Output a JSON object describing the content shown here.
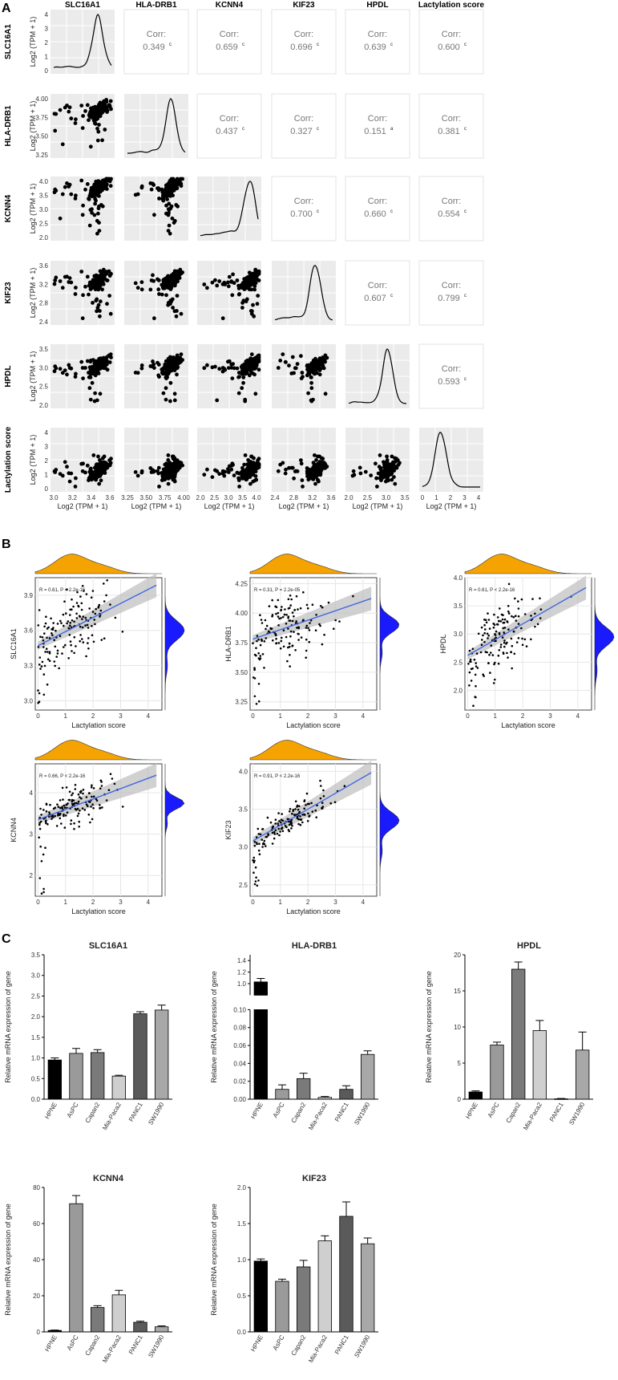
{
  "chart_data": [
    {
      "panel": "A",
      "type": "scatter",
      "kind": "correlation-matrix",
      "variables": [
        "SLC16A1",
        "HLA-DRB1",
        "KCNN4",
        "KIF23",
        "HPDL",
        "Lactylation score"
      ],
      "row_axis_label": "Log2 (TPM + 1)",
      "col_axis_label": "Log2 (TPM + 1)",
      "ranges": [
        [
          2.9,
          3.75
        ],
        [
          3.2,
          4.15
        ],
        [
          1.6,
          4.1
        ],
        [
          2.35,
          3.7
        ],
        [
          1.7,
          3.55
        ],
        [
          -0.1,
          4.3
        ]
      ],
      "ticks": [
        [
          "3.0",
          "3.2",
          "3.4",
          "3.6"
        ],
        [
          "3.25",
          "3.50",
          "3.75",
          "4.00"
        ],
        [
          "2.0",
          "2.5",
          "3.0",
          "3.5",
          "4.0"
        ],
        [
          "2.4",
          "2.8",
          "3.2",
          "3.6"
        ],
        [
          "2.0",
          "2.5",
          "3.0",
          "3.5"
        ],
        [
          "0",
          "1",
          "2",
          "3",
          "4"
        ]
      ],
      "row_ticks": [
        [
          "0",
          "1",
          "2",
          "3",
          "4"
        ],
        [
          "3.25",
          "3.50",
          "3.75",
          "4.00"
        ],
        [
          "2.0",
          "2.5",
          "3.0",
          "3.5",
          "4.0"
        ],
        [
          "2.4",
          "2.8",
          "3.2",
          "3.6"
        ],
        [
          "2.0",
          "2.5",
          "3.0",
          "3.5"
        ],
        [
          "0",
          "1",
          "2",
          "3",
          "4"
        ]
      ],
      "means": [
        3.55,
        3.92,
        3.7,
        3.3,
        2.95,
        1.3
      ],
      "corr_label": "Corr:",
      "correlations": [
        {
          "row": 0,
          "col": 1,
          "value": "0.349",
          "sig": "c"
        },
        {
          "row": 0,
          "col": 2,
          "value": "0.659",
          "sig": "c"
        },
        {
          "row": 0,
          "col": 3,
          "value": "0.696",
          "sig": "c"
        },
        {
          "row": 0,
          "col": 4,
          "value": "0.639",
          "sig": "c"
        },
        {
          "row": 0,
          "col": 5,
          "value": "0.600",
          "sig": "c"
        },
        {
          "row": 1,
          "col": 2,
          "value": "0.437",
          "sig": "c"
        },
        {
          "row": 1,
          "col": 3,
          "value": "0.327",
          "sig": "c"
        },
        {
          "row": 1,
          "col": 4,
          "value": "0.151",
          "sig": "a"
        },
        {
          "row": 1,
          "col": 5,
          "value": "0.381",
          "sig": "c"
        },
        {
          "row": 2,
          "col": 3,
          "value": "0.700",
          "sig": "c"
        },
        {
          "row": 2,
          "col": 4,
          "value": "0.660",
          "sig": "c"
        },
        {
          "row": 2,
          "col": 5,
          "value": "0.554",
          "sig": "c"
        },
        {
          "row": 3,
          "col": 4,
          "value": "0.607",
          "sig": "c"
        },
        {
          "row": 3,
          "col": 5,
          "value": "0.799",
          "sig": "c"
        },
        {
          "row": 4,
          "col": 5,
          "value": "0.593",
          "sig": "c"
        }
      ]
    },
    {
      "panel": "B",
      "type": "scatter",
      "kind": "regression-with-marginal-density",
      "xlabel": "Lactylation score",
      "xlim": [
        -0.1,
        4.5
      ],
      "xticks": [
        0,
        1,
        2,
        3,
        4
      ],
      "top_density_color": "#f5a300",
      "right_density_color": "#1a1aff",
      "fit_color": "#4169e1",
      "plots": [
        {
          "gene": "SLC16A1",
          "ylim": [
            2.92,
            4.05
          ],
          "yticks": [
            "3.0",
            "3.3",
            "3.6",
            "3.9"
          ],
          "yvals": [
            3.0,
            3.3,
            3.6,
            3.9
          ],
          "annotation": "R = 0.61, P < 2.2e-16",
          "fit": [
            3.47,
            0.12
          ],
          "r": 0.61,
          "ymean": 3.6,
          "ysd": 0.15
        },
        {
          "gene": "HLA-DRB1",
          "ylim": [
            3.18,
            4.3
          ],
          "yticks": [
            "3.25",
            "3.50",
            "3.75",
            "4.00",
            "4.25"
          ],
          "yvals": [
            3.25,
            3.5,
            3.75,
            4.0,
            4.25
          ],
          "annotation": "R = 0.31, P = 2.2e-05",
          "fit": [
            3.78,
            0.08
          ],
          "r": 0.31,
          "ymean": 3.9,
          "ysd": 0.12
        },
        {
          "gene": "HPDL",
          "ylim": [
            1.65,
            4.0
          ],
          "yticks": [
            "2.0",
            "2.5",
            "3.0",
            "3.5",
            "4.0"
          ],
          "yvals": [
            2.0,
            2.5,
            3.0,
            3.5,
            4.0
          ],
          "annotation": "R = 0.61, P < 2.2e-16",
          "fit": [
            2.62,
            0.28
          ],
          "r": 0.61,
          "ymean": 2.95,
          "ysd": 0.3
        },
        {
          "gene": "KCNN4",
          "ylim": [
            1.5,
            4.7
          ],
          "yticks": [
            "2",
            "3",
            "4"
          ],
          "yvals": [
            2,
            3,
            4
          ],
          "annotation": "R = 0.66, P < 2.2e-16",
          "fit": [
            3.35,
            0.25
          ],
          "r": 0.66,
          "ymean": 3.75,
          "ysd": 0.25
        },
        {
          "gene": "KIF23",
          "ylim": [
            2.35,
            4.1
          ],
          "yticks": [
            "2.5",
            "3.0",
            "3.5",
            "4.0"
          ],
          "yvals": [
            2.5,
            3.0,
            3.5,
            4.0
          ],
          "annotation": "R = 0.91, P < 2.2e-16",
          "fit": [
            3.08,
            0.21
          ],
          "r": 0.91,
          "ymean": 3.35,
          "ysd": 0.2
        }
      ]
    },
    {
      "panel": "C",
      "type": "bar",
      "ylabel": "Relative mRNA expression of gene",
      "categories": [
        "HPNE",
        "AsPC",
        "Capan2",
        "Mia-Paca2",
        "PANC1",
        "SW1990"
      ],
      "bar_colors": [
        "#000000",
        "#9a9a9a",
        "#7a7a7a",
        "#cfcfcf",
        "#5a5a5a",
        "#a8a8a8"
      ],
      "charts": [
        {
          "title": "SLC16A1",
          "values": [
            0.95,
            1.11,
            1.13,
            0.56,
            2.07,
            2.16
          ],
          "errors": [
            0.05,
            0.12,
            0.07,
            0.02,
            0.05,
            0.12
          ],
          "ylim": [
            0,
            3.5
          ],
          "yticks": [
            "0.0",
            "0.5",
            "1.0",
            "1.5",
            "2.0",
            "2.5",
            "3.0",
            "3.5"
          ]
        },
        {
          "title": "HLA-DRB1",
          "values": [
            1.03,
            0.011,
            0.023,
            0.002,
            0.011,
            0.05
          ],
          "errors": [
            0.06,
            0.005,
            0.006,
            0.001,
            0.004,
            0.004
          ],
          "broken_axis": true,
          "lower_range": [
            0,
            0.1
          ],
          "upper_range": [
            0.8,
            1.5
          ],
          "yticks_lower": [
            "0.00",
            "0.02",
            "0.04",
            "0.06",
            "0.08",
            "0.10"
          ],
          "yticks_upper": [
            "1.0",
            "1.2",
            "1.4"
          ]
        },
        {
          "title": "HPDL",
          "values": [
            1.0,
            7.5,
            18.0,
            9.5,
            0.05,
            6.8
          ],
          "errors": [
            0.15,
            0.4,
            1.0,
            1.4,
            0.05,
            2.5
          ],
          "ylim": [
            0,
            20
          ],
          "yticks": [
            "0",
            "5",
            "10",
            "15",
            "20"
          ]
        },
        {
          "title": "KCNN4",
          "values": [
            0.8,
            71,
            13.5,
            20.5,
            5.3,
            2.8
          ],
          "errors": [
            0.2,
            4.5,
            1.0,
            2.5,
            0.6,
            0.5
          ],
          "ylim": [
            0,
            80
          ],
          "yticks": [
            "0",
            "20",
            "40",
            "60",
            "80"
          ]
        },
        {
          "title": "KIF23",
          "values": [
            0.98,
            0.7,
            0.9,
            1.26,
            1.6,
            1.22
          ],
          "errors": [
            0.03,
            0.03,
            0.09,
            0.07,
            0.2,
            0.08
          ],
          "ylim": [
            0,
            2.0
          ],
          "yticks": [
            "0.0",
            "0.5",
            "1.0",
            "1.5",
            "2.0"
          ]
        }
      ]
    }
  ]
}
